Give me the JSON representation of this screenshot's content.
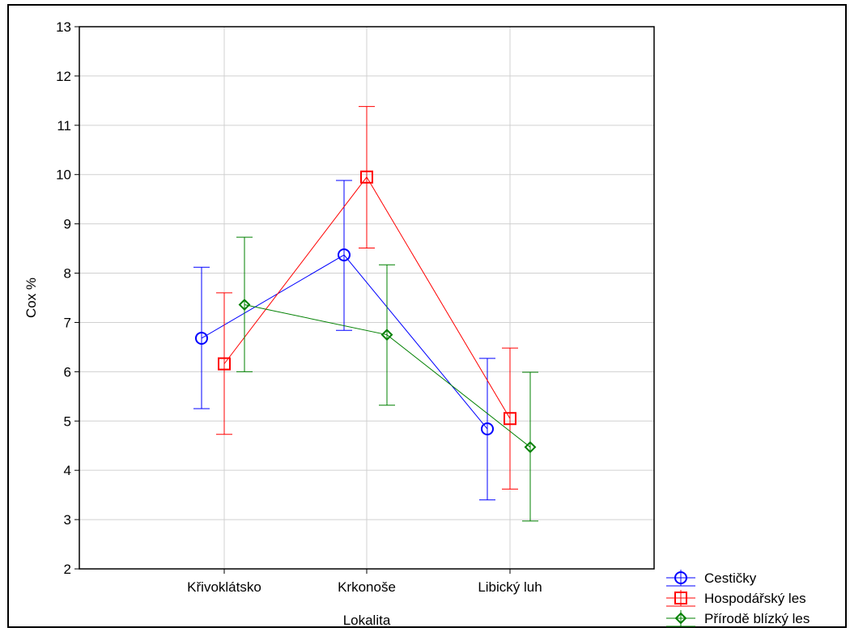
{
  "chart_data": {
    "type": "line",
    "title": "",
    "xlabel": "Lokalita",
    "ylabel": "Cox %",
    "ylim": [
      2,
      13
    ],
    "yticks": [
      2,
      3,
      4,
      5,
      6,
      7,
      8,
      9,
      10,
      11,
      12,
      13
    ],
    "categories": [
      "Křivoklátsko",
      "Krkonoše",
      "Libický luh"
    ],
    "grid": true,
    "legend_position": "bottom-right",
    "error_bars": true,
    "series": [
      {
        "name": "Cestičky",
        "color": "#0000ff",
        "marker": "circle",
        "values": [
          6.68,
          8.37,
          4.84
        ],
        "lower": [
          5.25,
          6.84,
          3.4
        ],
        "upper": [
          8.12,
          9.88,
          6.27
        ]
      },
      {
        "name": "Hospodářský les",
        "color": "#ff0000",
        "marker": "square",
        "values": [
          6.16,
          9.95,
          5.05
        ],
        "lower": [
          4.73,
          8.51,
          3.62
        ],
        "upper": [
          7.6,
          11.38,
          6.48
        ]
      },
      {
        "name": "Přírodě blízký les",
        "color": "#008000",
        "marker": "diamond",
        "values": [
          7.36,
          6.75,
          4.47
        ],
        "lower": [
          6.0,
          5.32,
          2.97
        ],
        "upper": [
          8.73,
          8.17,
          5.99
        ]
      }
    ]
  }
}
